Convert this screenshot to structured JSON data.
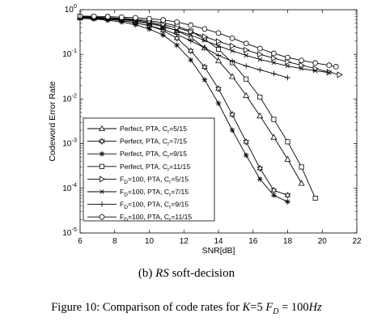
{
  "chart_data": {
    "type": "line",
    "title": "",
    "xlabel": "SNR[dB]",
    "ylabel": "Codeword Error Rate",
    "xlim": [
      6,
      22
    ],
    "ylim_exp": [
      -5,
      0
    ],
    "y_scale": "log",
    "grid": false,
    "legend_position": "bottom-left",
    "x_ticks": [
      "6",
      "8",
      "10",
      "12",
      "14",
      "16",
      "18",
      "20",
      "22"
    ],
    "y_ticks": [
      {
        "base": "10",
        "exp": "0"
      },
      {
        "base": "10",
        "exp": "-1"
      },
      {
        "base": "10",
        "exp": "-2"
      },
      {
        "base": "10",
        "exp": "-3"
      },
      {
        "base": "10",
        "exp": "-4"
      },
      {
        "base": "10",
        "exp": "-5"
      }
    ],
    "series": [
      {
        "name": "Perfect, PTA, Cr=5/15",
        "legend_pre": "Perfect, PTA, C",
        "legend_sub": "r",
        "legend_post": "=5/15",
        "marker": "triangle-up",
        "x": [
          6.0,
          6.8,
          7.6,
          8.4,
          9.2,
          10.0,
          10.8,
          11.6,
          12.4,
          13.2,
          14.0,
          14.8,
          15.6,
          16.4,
          17.2,
          18.0,
          18.8
        ],
        "y": [
          0.67,
          0.66,
          0.64,
          0.61,
          0.56,
          0.5,
          0.43,
          0.34,
          0.24,
          0.14,
          0.072,
          0.032,
          0.012,
          0.0042,
          0.0014,
          0.00045,
          0.00013
        ]
      },
      {
        "name": "Perfect, PTA, Cr=7/15",
        "legend_pre": "Perfect, PTA, C",
        "legend_sub": "r",
        "legend_post": "=7/15",
        "marker": "hexagram",
        "x": [
          6.0,
          6.8,
          7.6,
          8.4,
          9.2,
          10.0,
          10.8,
          11.6,
          12.4,
          13.2,
          14.0,
          14.8,
          15.6,
          16.4,
          17.2,
          18.0
        ],
        "y": [
          0.66,
          0.64,
          0.61,
          0.57,
          0.51,
          0.44,
          0.34,
          0.23,
          0.12,
          0.052,
          0.017,
          0.0045,
          0.0011,
          0.00028,
          9e-05,
          7e-05
        ]
      },
      {
        "name": "Perfect, PTA, Cr=9/15",
        "legend_pre": "Perfect, PTA, C",
        "legend_sub": "r",
        "legend_post": "=9/15",
        "marker": "asterisk",
        "x": [
          6.0,
          6.8,
          7.6,
          8.4,
          9.2,
          10.0,
          10.8,
          11.6,
          12.4,
          13.2,
          14.0,
          14.8,
          15.6,
          16.4,
          17.2,
          18.0
        ],
        "y": [
          0.64,
          0.62,
          0.58,
          0.53,
          0.46,
          0.37,
          0.27,
          0.16,
          0.075,
          0.027,
          0.008,
          0.002,
          0.00055,
          0.00016,
          7e-05,
          5e-05
        ]
      },
      {
        "name": "Perfect, PTA, Cr=11/15",
        "legend_pre": "Perfect, PTA, C",
        "legend_sub": "r",
        "legend_post": "=11/15",
        "marker": "square",
        "x": [
          6.0,
          6.8,
          7.6,
          8.4,
          9.2,
          10.0,
          10.8,
          11.6,
          12.4,
          13.2,
          14.0,
          14.8,
          15.6,
          16.4,
          17.2,
          18.0,
          18.8,
          19.6
        ],
        "y": [
          0.68,
          0.67,
          0.66,
          0.64,
          0.61,
          0.57,
          0.51,
          0.43,
          0.33,
          0.22,
          0.13,
          0.065,
          0.028,
          0.011,
          0.0035,
          0.0011,
          0.0003,
          6e-05
        ]
      },
      {
        "name": "FD=100, PTA, Cr=5/15",
        "legend_pre": "F",
        "legend_sub_a": "D",
        "legend_mid": "=100, PTA, C",
        "legend_sub": "r",
        "legend_post": "=5/15",
        "marker": "triangle-right",
        "x": [
          6.0,
          6.8,
          7.6,
          8.4,
          9.2,
          10.0,
          10.8,
          11.6,
          12.4,
          13.2,
          14.0,
          14.8,
          15.6,
          16.4,
          17.2,
          18.0,
          18.8,
          19.6,
          20.4,
          21.0
        ],
        "y": [
          0.7,
          0.68,
          0.66,
          0.63,
          0.59,
          0.53,
          0.46,
          0.39,
          0.32,
          0.25,
          0.195,
          0.155,
          0.125,
          0.1,
          0.082,
          0.068,
          0.057,
          0.048,
          0.04,
          0.035
        ]
      },
      {
        "name": "FD=100, PTA, Cr=7/15",
        "legend_pre": "F",
        "legend_sub_a": "D",
        "legend_mid": "=100, PTA, C",
        "legend_sub": "r",
        "legend_post": "=7/15",
        "marker": "cross",
        "x": [
          6.0,
          6.8,
          7.6,
          8.4,
          9.2,
          10.0,
          10.8,
          11.6,
          12.4,
          13.2,
          14.0,
          14.8,
          15.6,
          16.4,
          17.2,
          18.0,
          18.8,
          19.6,
          20.4
        ],
        "y": [
          0.68,
          0.66,
          0.63,
          0.6,
          0.55,
          0.49,
          0.42,
          0.34,
          0.27,
          0.205,
          0.155,
          0.12,
          0.095,
          0.077,
          0.065,
          0.055,
          0.048,
          0.043,
          0.039
        ]
      },
      {
        "name": "FD=100, PTA, Cr=9/15",
        "legend_pre": "F",
        "legend_sub_a": "D",
        "legend_mid": "=100, PTA, C",
        "legend_sub": "r",
        "legend_post": "=9/15",
        "marker": "plus",
        "x": [
          6.0,
          6.8,
          7.6,
          8.4,
          9.2,
          10.0,
          10.8,
          11.6,
          12.4,
          13.2,
          14.0,
          14.8,
          15.6,
          16.4,
          17.2,
          18.0
        ],
        "y": [
          0.66,
          0.64,
          0.61,
          0.57,
          0.51,
          0.44,
          0.36,
          0.28,
          0.2,
          0.14,
          0.095,
          0.07,
          0.055,
          0.045,
          0.037,
          0.03
        ]
      },
      {
        "name": "FD=100, PTA, Cr=11/15",
        "legend_pre": "F",
        "legend_sub_a": "D",
        "legend_mid": "=100, PTA, C",
        "legend_sub": "r",
        "legend_post": "=11/15",
        "marker": "circle",
        "x": [
          6.0,
          6.8,
          7.6,
          8.4,
          9.2,
          10.0,
          10.8,
          11.6,
          12.4,
          13.2,
          14.0,
          14.8,
          15.6,
          16.4,
          17.2,
          18.0,
          18.8,
          19.6,
          20.4,
          20.8
        ],
        "y": [
          0.72,
          0.71,
          0.7,
          0.68,
          0.66,
          0.63,
          0.59,
          0.53,
          0.45,
          0.37,
          0.3,
          0.23,
          0.175,
          0.135,
          0.105,
          0.085,
          0.073,
          0.064,
          0.057,
          0.053
        ]
      }
    ]
  },
  "captions": {
    "sub_open": "(b) ",
    "sub_code": "RS",
    "sub_rest": " soft-decision",
    "fig_prefix": "Figure 10: Comparison of code rates for ",
    "fig_k": "K",
    "fig_k_eq": "=5 ",
    "fig_f": "F",
    "fig_d": "D",
    "fig_eq": " = 100",
    "fig_hz": "Hz"
  }
}
